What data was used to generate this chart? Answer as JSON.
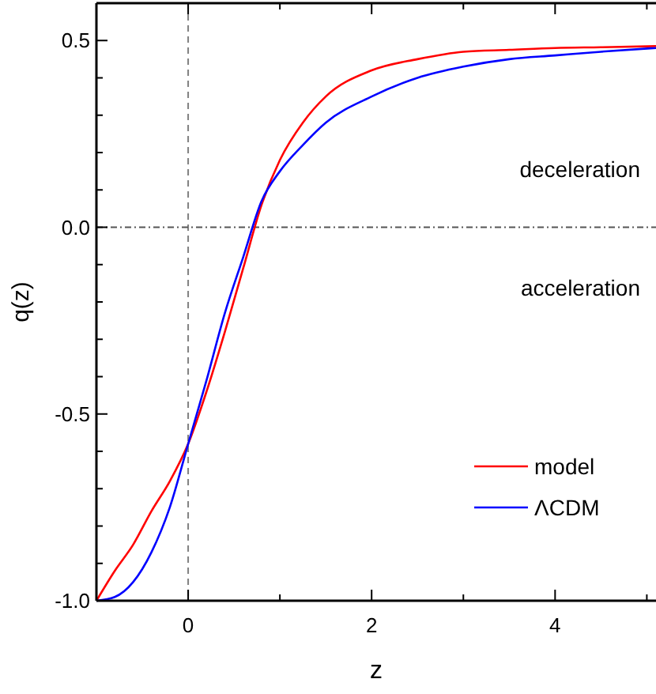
{
  "chart_data": {
    "type": "line",
    "xlabel": "z",
    "ylabel": "q(z)",
    "xlim": [
      -1,
      5.1
    ],
    "ylim": [
      -1,
      0.6
    ],
    "xticks": [
      {
        "value": -1,
        "label": null
      },
      {
        "value": 0,
        "label": "0"
      },
      {
        "value": 1,
        "label": null
      },
      {
        "value": 2,
        "label": "2"
      },
      {
        "value": 3,
        "label": null
      },
      {
        "value": 4,
        "label": "4"
      },
      {
        "value": 5,
        "label": null
      }
    ],
    "yticks": [
      {
        "value": -1,
        "label": "-1.0"
      },
      {
        "value": -0.9,
        "label": null
      },
      {
        "value": -0.8,
        "label": null
      },
      {
        "value": -0.7,
        "label": null
      },
      {
        "value": -0.6,
        "label": null
      },
      {
        "value": -0.5,
        "label": "-0.5"
      },
      {
        "value": -0.4,
        "label": null
      },
      {
        "value": -0.3,
        "label": null
      },
      {
        "value": -0.2,
        "label": null
      },
      {
        "value": -0.1,
        "label": null
      },
      {
        "value": 0,
        "label": "0.0"
      },
      {
        "value": 0.1,
        "label": null
      },
      {
        "value": 0.2,
        "label": null
      },
      {
        "value": 0.3,
        "label": null
      },
      {
        "value": 0.4,
        "label": null
      },
      {
        "value": 0.5,
        "label": "0.5"
      }
    ],
    "x": [
      -1,
      -0.8,
      -0.6,
      -0.4,
      -0.2,
      0,
      0.2,
      0.4,
      0.6,
      0.8,
      1,
      1.25,
      1.5,
      2,
      2.5,
      3,
      3.5,
      4,
      4.5,
      5.1
    ],
    "series": [
      {
        "name": "model",
        "color": "#ff0000",
        "values": [
          -1,
          -0.92,
          -0.85,
          -0.76,
          -0.68,
          -0.58,
          -0.44,
          -0.28,
          -0.11,
          0.06,
          0.18,
          0.28,
          0.35,
          0.42,
          0.45,
          0.47,
          0.475,
          0.48,
          0.482,
          0.485
        ]
      },
      {
        "name": "ΛCDM",
        "color": "#0000ff",
        "values": [
          -1,
          -0.99,
          -0.95,
          -0.87,
          -0.75,
          -0.58,
          -0.41,
          -0.23,
          -0.08,
          0.07,
          0.15,
          0.22,
          0.28,
          0.35,
          0.4,
          0.43,
          0.45,
          0.46,
          0.47,
          0.48
        ]
      }
    ],
    "ref_lines": [
      {
        "axis": "x",
        "value": 0,
        "color": "#808080",
        "line_style": "dashed"
      },
      {
        "axis": "y",
        "value": 0,
        "color": "#555555",
        "line_style": "dashdot"
      }
    ],
    "annotations": [
      "deceleration",
      "acceleration"
    ],
    "legend": "bottom right",
    "grid": false,
    "line_style": "solid"
  }
}
